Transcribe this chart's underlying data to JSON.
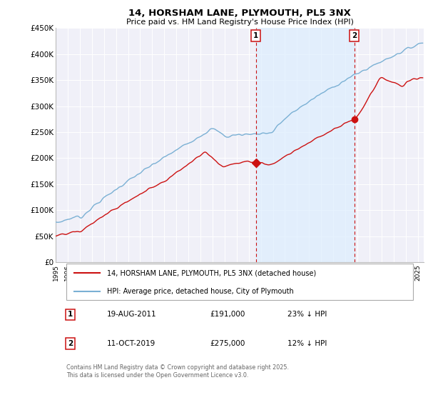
{
  "title": "14, HORSHAM LANE, PLYMOUTH, PL5 3NX",
  "subtitle": "Price paid vs. HM Land Registry's House Price Index (HPI)",
  "bg_color": "#ffffff",
  "plot_bg_color": "#f0f0f8",
  "grid_color": "#ffffff",
  "blue_color": "#7ab0d4",
  "red_color": "#cc1111",
  "shade_color": "#ddeeff",
  "legend_entries": [
    "14, HORSHAM LANE, PLYMOUTH, PL5 3NX (detached house)",
    "HPI: Average price, detached house, City of Plymouth"
  ],
  "annotations": [
    [
      "1",
      "19-AUG-2011",
      "£191,000",
      "23% ↓ HPI"
    ],
    [
      "2",
      "11-OCT-2019",
      "£275,000",
      "12% ↓ HPI"
    ]
  ],
  "copyright": "Contains HM Land Registry data © Crown copyright and database right 2025.\nThis data is licensed under the Open Government Licence v3.0.",
  "ylim": [
    0,
    450000
  ],
  "yticks": [
    0,
    50000,
    100000,
    150000,
    200000,
    250000,
    300000,
    350000,
    400000,
    450000
  ],
  "ytick_labels": [
    "£0",
    "£50K",
    "£100K",
    "£150K",
    "£200K",
    "£250K",
    "£300K",
    "£350K",
    "£400K",
    "£450K"
  ],
  "sale1_year": 2011.625,
  "sale1_price": 191000,
  "sale2_year": 2019.75,
  "sale2_price": 275000,
  "xmin": 1995.0,
  "xmax": 2025.5
}
